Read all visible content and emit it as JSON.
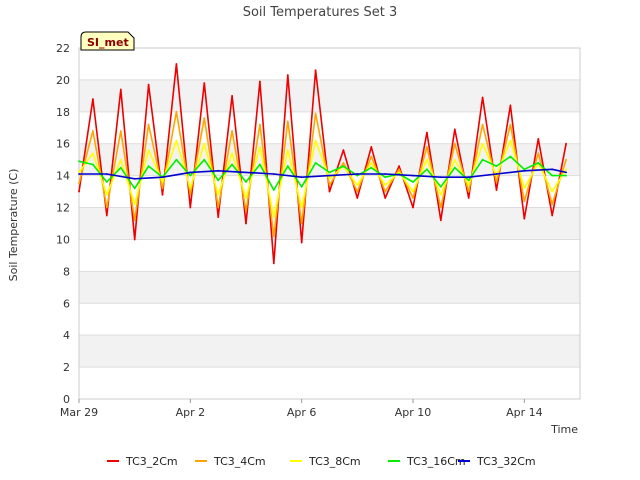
{
  "chart_data": {
    "type": "line",
    "title": "Soil Temperatures Set 3",
    "xlabel": "Time",
    "ylabel": "Soil Temperature (C)",
    "badge": "SI_met",
    "ylim": [
      0,
      22
    ],
    "yticks": [
      0,
      2,
      4,
      6,
      8,
      10,
      12,
      14,
      16,
      18,
      20,
      22
    ],
    "xlim": [
      "2025-03-29",
      "2025-04-16"
    ],
    "xticks": [
      {
        "date": "2025-03-29",
        "label": "Mar 29"
      },
      {
        "date": "2025-04-02",
        "label": "Apr 2"
      },
      {
        "date": "2025-04-06",
        "label": "Apr 6"
      },
      {
        "date": "2025-04-10",
        "label": "Apr 10"
      },
      {
        "date": "2025-04-14",
        "label": "Apr 14"
      }
    ],
    "grid": "horizontal bands",
    "legend_position": "bottom",
    "series": [
      {
        "name": "TC3_2Cm",
        "color": "#ee0000",
        "x": [
          "2025-03-29T00:00",
          "2025-03-29T12:00",
          "2025-03-30T00:00",
          "2025-03-30T12:00",
          "2025-03-31T00:00",
          "2025-03-31T12:00",
          "2025-04-01T00:00",
          "2025-04-01T12:00",
          "2025-04-02T00:00",
          "2025-04-02T12:00",
          "2025-04-03T00:00",
          "2025-04-03T12:00",
          "2025-04-04T00:00",
          "2025-04-04T12:00",
          "2025-04-05T00:00",
          "2025-04-05T12:00",
          "2025-04-06T00:00",
          "2025-04-06T12:00",
          "2025-04-07T00:00",
          "2025-04-07T12:00",
          "2025-04-08T00:00",
          "2025-04-08T12:00",
          "2025-04-09T00:00",
          "2025-04-09T12:00",
          "2025-04-10T00:00",
          "2025-04-10T12:00",
          "2025-04-11T00:00",
          "2025-04-11T12:00",
          "2025-04-12T00:00",
          "2025-04-12T12:00",
          "2025-04-13T00:00",
          "2025-04-13T12:00",
          "2025-04-14T00:00",
          "2025-04-14T12:00",
          "2025-04-15T00:00",
          "2025-04-15T12:00"
        ],
        "y": [
          13.0,
          18.8,
          11.5,
          19.4,
          10.0,
          19.7,
          12.8,
          21.0,
          12.0,
          19.8,
          11.4,
          19.0,
          11.0,
          19.9,
          8.5,
          20.3,
          9.8,
          20.6,
          13.0,
          15.6,
          12.6,
          15.8,
          12.6,
          14.6,
          12.0,
          16.7,
          11.2,
          16.9,
          12.6,
          18.9,
          13.1,
          18.4,
          11.3,
          16.3,
          11.5,
          16.0
        ]
      },
      {
        "name": "TC3_4Cm",
        "color": "#ffa500",
        "x": [
          "2025-03-29T00:00",
          "2025-03-29T12:00",
          "2025-03-30T00:00",
          "2025-03-30T12:00",
          "2025-03-31T00:00",
          "2025-03-31T12:00",
          "2025-04-01T00:00",
          "2025-04-01T12:00",
          "2025-04-02T00:00",
          "2025-04-02T12:00",
          "2025-04-03T00:00",
          "2025-04-03T12:00",
          "2025-04-04T00:00",
          "2025-04-04T12:00",
          "2025-04-05T00:00",
          "2025-04-05T12:00",
          "2025-04-06T00:00",
          "2025-04-06T12:00",
          "2025-04-07T00:00",
          "2025-04-07T12:00",
          "2025-04-08T00:00",
          "2025-04-08T12:00",
          "2025-04-09T00:00",
          "2025-04-09T12:00",
          "2025-04-10T00:00",
          "2025-04-10T12:00",
          "2025-04-11T00:00",
          "2025-04-11T12:00",
          "2025-04-12T00:00",
          "2025-04-12T12:00",
          "2025-04-13T00:00",
          "2025-04-13T12:00",
          "2025-04-14T00:00",
          "2025-04-14T12:00",
          "2025-04-15T00:00",
          "2025-04-15T12:00"
        ],
        "y": [
          13.5,
          16.8,
          12.0,
          16.8,
          11.2,
          17.2,
          13.2,
          18.0,
          12.8,
          17.6,
          12.0,
          16.8,
          11.8,
          17.2,
          10.2,
          17.4,
          11.0,
          17.9,
          13.4,
          14.8,
          13.0,
          15.2,
          13.0,
          14.4,
          12.6,
          15.8,
          12.0,
          16.0,
          13.0,
          17.2,
          13.6,
          17.2,
          12.4,
          15.4,
          12.2,
          15.0
        ]
      },
      {
        "name": "TC3_8Cm",
        "color": "#ffff00",
        "x": [
          "2025-03-29T00:00",
          "2025-03-29T12:00",
          "2025-03-30T00:00",
          "2025-03-30T12:00",
          "2025-03-31T00:00",
          "2025-03-31T12:00",
          "2025-04-01T00:00",
          "2025-04-01T12:00",
          "2025-04-02T00:00",
          "2025-04-02T12:00",
          "2025-04-03T00:00",
          "2025-04-03T12:00",
          "2025-04-04T00:00",
          "2025-04-04T12:00",
          "2025-04-05T00:00",
          "2025-04-05T12:00",
          "2025-04-06T00:00",
          "2025-04-06T12:00",
          "2025-04-07T00:00",
          "2025-04-07T12:00",
          "2025-04-08T00:00",
          "2025-04-08T12:00",
          "2025-04-09T00:00",
          "2025-04-09T12:00",
          "2025-04-10T00:00",
          "2025-04-10T12:00",
          "2025-04-11T00:00",
          "2025-04-11T12:00",
          "2025-04-12T00:00",
          "2025-04-12T12:00",
          "2025-04-13T00:00",
          "2025-04-13T12:00",
          "2025-04-14T00:00",
          "2025-04-14T12:00",
          "2025-04-15T00:00",
          "2025-04-15T12:00"
        ],
        "y": [
          14.2,
          15.4,
          12.8,
          15.0,
          12.2,
          15.6,
          13.6,
          16.2,
          13.2,
          16.0,
          12.8,
          15.4,
          12.6,
          15.8,
          11.4,
          15.6,
          12.0,
          16.2,
          13.8,
          14.6,
          13.4,
          14.8,
          13.4,
          14.2,
          13.0,
          15.0,
          12.8,
          15.0,
          13.4,
          16.0,
          14.0,
          16.2,
          13.2,
          14.8,
          13.0,
          14.4
        ]
      },
      {
        "name": "TC3_16Cm",
        "color": "#00ee00",
        "x": [
          "2025-03-29T00:00",
          "2025-03-29T12:00",
          "2025-03-30T00:00",
          "2025-03-30T12:00",
          "2025-03-31T00:00",
          "2025-03-31T12:00",
          "2025-04-01T00:00",
          "2025-04-01T12:00",
          "2025-04-02T00:00",
          "2025-04-02T12:00",
          "2025-04-03T00:00",
          "2025-04-03T12:00",
          "2025-04-04T00:00",
          "2025-04-04T12:00",
          "2025-04-05T00:00",
          "2025-04-05T12:00",
          "2025-04-06T00:00",
          "2025-04-06T12:00",
          "2025-04-07T00:00",
          "2025-04-07T12:00",
          "2025-04-08T00:00",
          "2025-04-08T12:00",
          "2025-04-09T00:00",
          "2025-04-09T12:00",
          "2025-04-10T00:00",
          "2025-04-10T12:00",
          "2025-04-11T00:00",
          "2025-04-11T12:00",
          "2025-04-12T00:00",
          "2025-04-12T12:00",
          "2025-04-13T00:00",
          "2025-04-13T12:00",
          "2025-04-14T00:00",
          "2025-04-14T12:00",
          "2025-04-15T00:00",
          "2025-04-15T12:00"
        ],
        "y": [
          14.9,
          14.7,
          13.6,
          14.5,
          13.2,
          14.6,
          13.9,
          15.0,
          14.0,
          15.0,
          13.7,
          14.7,
          13.6,
          14.7,
          13.1,
          14.6,
          13.3,
          14.8,
          14.2,
          14.6,
          14.0,
          14.5,
          13.9,
          14.1,
          13.6,
          14.4,
          13.3,
          14.5,
          13.7,
          15.0,
          14.6,
          15.2,
          14.4,
          14.8,
          14.0,
          14.0
        ]
      },
      {
        "name": "TC3_32Cm",
        "color": "#0000cc",
        "x": [
          "2025-03-29T00:00",
          "2025-03-30T00:00",
          "2025-03-31T00:00",
          "2025-04-01T00:00",
          "2025-04-02T00:00",
          "2025-04-03T00:00",
          "2025-04-04T00:00",
          "2025-04-05T00:00",
          "2025-04-06T00:00",
          "2025-04-07T00:00",
          "2025-04-08T00:00",
          "2025-04-09T00:00",
          "2025-04-10T00:00",
          "2025-04-11T00:00",
          "2025-04-12T00:00",
          "2025-04-13T00:00",
          "2025-04-14T00:00",
          "2025-04-15T00:00",
          "2025-04-15T12:00"
        ],
        "y": [
          14.1,
          14.1,
          13.8,
          13.9,
          14.2,
          14.3,
          14.2,
          14.1,
          13.9,
          14.0,
          14.1,
          14.1,
          14.0,
          13.9,
          13.9,
          14.1,
          14.3,
          14.4,
          14.2
        ]
      }
    ]
  }
}
